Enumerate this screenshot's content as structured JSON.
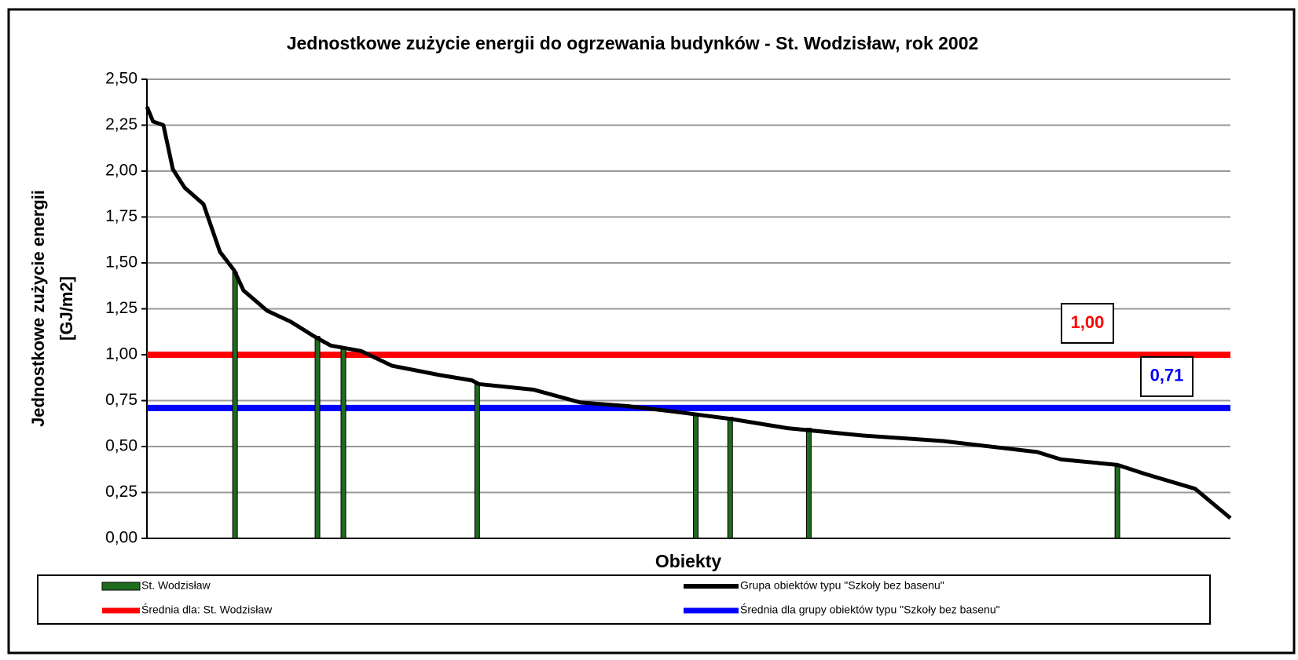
{
  "chart_data": {
    "type": "combo",
    "title": "Jednostkowe zużycie energii do ogrzewania budynków - St. Wodzisław, rok 2002",
    "y_label": [
      "Jednostkowe zużycie energii",
      "[GJ/m2]"
    ],
    "x_label": "Obiekty",
    "xlim": [
      0,
      230
    ],
    "ylim": [
      0,
      2.5
    ],
    "yticks": [
      {
        "value": 0,
        "label": "0,00"
      },
      {
        "value": 0.25,
        "label": "0,25"
      },
      {
        "value": 0.5,
        "label": "0,50"
      },
      {
        "value": 0.75,
        "label": "0,75"
      },
      {
        "value": 1,
        "label": "1,00"
      },
      {
        "value": 1.25,
        "label": "1,25"
      },
      {
        "value": 1.5,
        "label": "1,50"
      },
      {
        "value": 1.75,
        "label": "1,75"
      },
      {
        "value": 2,
        "label": "2,00"
      },
      {
        "value": 2.25,
        "label": "2,25"
      },
      {
        "value": 2.5,
        "label": "2,50"
      }
    ],
    "grid": true,
    "series": [
      {
        "name": "St. Wodzisław",
        "type": "bar",
        "color": "#1f6b1f",
        "x": [
          18.7,
          36.2,
          41.7,
          70.1,
          116.5,
          123.8,
          140.5,
          206
        ],
        "values": [
          1.45,
          1.1,
          1.03,
          0.84,
          0.67,
          0.66,
          0.6,
          0.39
        ]
      },
      {
        "name": "Grupa obiektów typu \"Szkoły bez basenu\"",
        "type": "line",
        "color": "#000000",
        "x": [
          0,
          1.3,
          3.5,
          5.5,
          8,
          12,
          15.5,
          18.5,
          20.5,
          25.5,
          30.5,
          35.5,
          39,
          45.5,
          52,
          62,
          69,
          70.5,
          82,
          92,
          102,
          112,
          124,
          136,
          152,
          169,
          189,
          194,
          206,
          212,
          222.5,
          230
        ],
        "values": [
          2.35,
          2.27,
          2.25,
          2.01,
          1.91,
          1.82,
          1.56,
          1.46,
          1.35,
          1.24,
          1.18,
          1.1,
          1.05,
          1.02,
          0.94,
          0.89,
          0.86,
          0.84,
          0.81,
          0.74,
          0.72,
          0.69,
          0.65,
          0.6,
          0.56,
          0.53,
          0.47,
          0.43,
          0.4,
          0.35,
          0.27,
          0.11
        ]
      },
      {
        "name": "Średnia dla: St. Wodzisław",
        "type": "hline",
        "color": "#ff0000",
        "values": [
          1.0
        ],
        "value_labels": [
          "1,00"
        ]
      },
      {
        "name": "Średnia dla grupy obiektów typu \"Szkoły bez basenu\"",
        "type": "hline",
        "color": "#0000ff",
        "values": [
          0.71
        ],
        "value_labels": [
          "0,71"
        ]
      }
    ]
  }
}
